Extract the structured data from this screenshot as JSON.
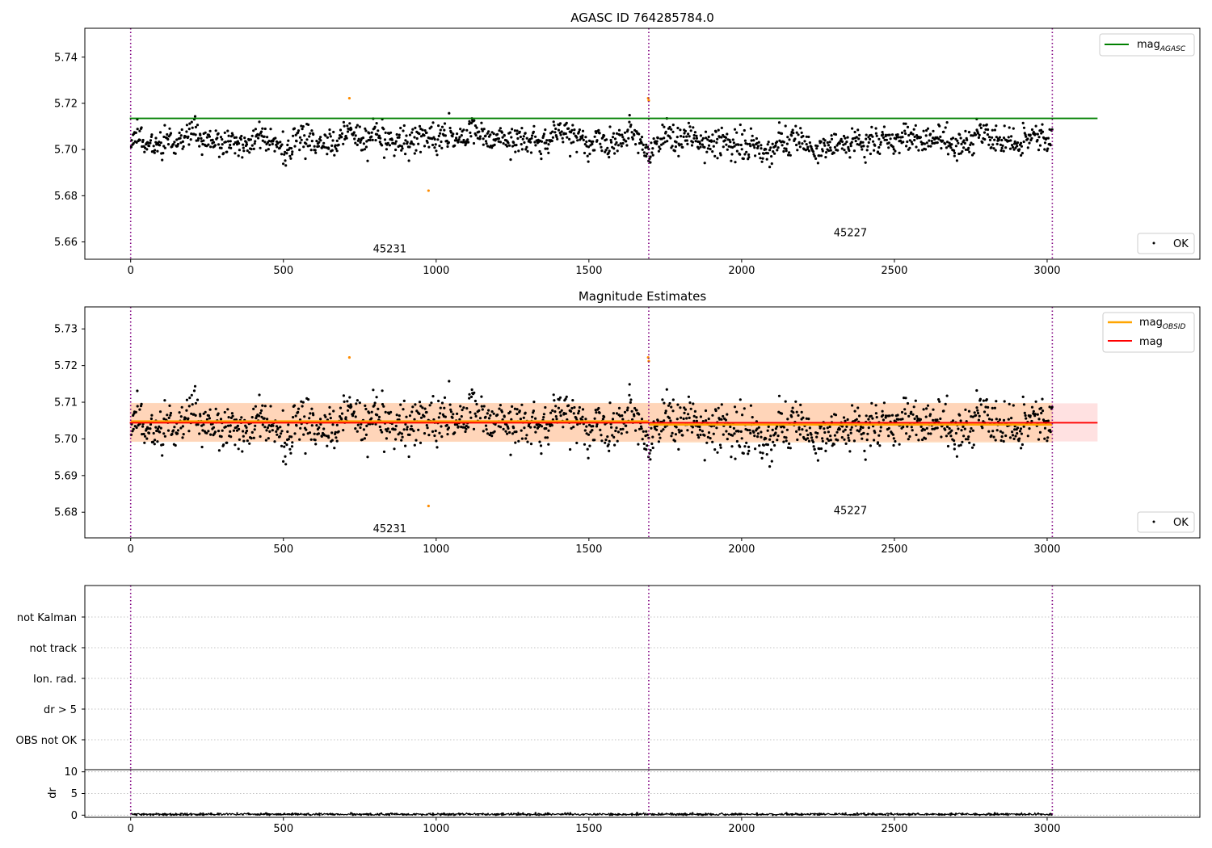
{
  "figure": {
    "background": "#ffffff"
  },
  "colors": {
    "ok_points": "#000000",
    "outlier_points": "#ff8c00",
    "agasc_line": "#008000",
    "obsid_line": "#ffa500",
    "mag_line": "#ff0000",
    "mag_band": "#ffb3b3",
    "obsid_band": "#ffcc99",
    "obs_boundary": "#800080",
    "grid": "#b0b0b0"
  },
  "chart_data": [
    {
      "type": "scatter",
      "title": "AGASC ID 764285784.0",
      "xlim": [
        -150,
        3500
      ],
      "ylim": [
        5.6525,
        5.7525
      ],
      "xticks": [
        0,
        500,
        1000,
        1500,
        2000,
        2500,
        3000
      ],
      "yticks": [
        5.66,
        5.68,
        5.7,
        5.72,
        5.74
      ],
      "ytick_labels": [
        "5.66",
        "5.68",
        "5.70",
        "5.72",
        "5.74"
      ],
      "obs_boundaries": [
        0,
        1696,
        3017
      ],
      "obs_labels": [
        {
          "text": "45231",
          "x": 848,
          "y": 5.6555
        },
        {
          "text": "45227",
          "x": 2356,
          "y": 5.6625
        }
      ],
      "series": [
        {
          "name": "mag_AGASC",
          "kind": "hline",
          "y": 5.7135,
          "x_range": [
            -3,
            3165
          ]
        }
      ],
      "points": {
        "name": "OK",
        "x_range": [
          0,
          3017
        ],
        "mean": 5.7045,
        "spread": 0.009,
        "y_range": [
          5.691,
          5.72
        ]
      },
      "outliers": [
        {
          "x": 716,
          "y": 5.7222
        },
        {
          "x": 975,
          "y": 5.6822
        },
        {
          "x": 1694,
          "y": 5.7222
        },
        {
          "x": 1696,
          "y": 5.7212
        }
      ],
      "legend_top": [
        {
          "label": "mag",
          "sub": "AGASC",
          "color": "#008000"
        }
      ],
      "legend_bottom": [
        {
          "label": "OK"
        }
      ]
    },
    {
      "type": "scatter",
      "title": "Magnitude Estimates",
      "xlim": [
        -150,
        3500
      ],
      "ylim": [
        5.673,
        5.736
      ],
      "xticks": [
        0,
        500,
        1000,
        1500,
        2000,
        2500,
        3000
      ],
      "yticks": [
        5.68,
        5.69,
        5.7,
        5.71,
        5.72,
        5.73
      ],
      "ytick_labels": [
        "5.68",
        "5.69",
        "5.70",
        "5.71",
        "5.72",
        "5.73"
      ],
      "obs_boundaries": [
        0,
        1696,
        3017
      ],
      "obs_labels": [
        {
          "text": "45231",
          "x": 848,
          "y": 5.6745
        },
        {
          "text": "45227",
          "x": 2356,
          "y": 5.6795
        }
      ],
      "series": [
        {
          "name": "mag_OBSID",
          "kind": "segments",
          "segments": [
            {
              "x0": 0,
              "x1": 1696,
              "y": 5.7048,
              "band": [
                5.6992,
                5.7098
              ]
            },
            {
              "x0": 1696,
              "x1": 3017,
              "y": 5.7039,
              "band": [
                5.699,
                5.7098
              ]
            }
          ]
        },
        {
          "name": "mag",
          "kind": "hline",
          "y": 5.7044,
          "x_range": [
            -3,
            3165
          ],
          "band": [
            5.6993,
            5.7097
          ]
        }
      ],
      "points": {
        "name": "OK",
        "x_range": [
          0,
          3017
        ],
        "mean": 5.7045,
        "spread": 0.009,
        "y_range": [
          5.691,
          5.72
        ]
      },
      "outliers": [
        {
          "x": 716,
          "y": 5.7222
        },
        {
          "x": 975,
          "y": 5.6817
        },
        {
          "x": 1694,
          "y": 5.7222
        },
        {
          "x": 1696,
          "y": 5.7212
        }
      ],
      "legend_top": [
        {
          "label": "mag",
          "sub": "OBSID",
          "color": "#ffa500"
        },
        {
          "label": "mag",
          "sub": "",
          "color": "#ff0000"
        }
      ],
      "legend_bottom": [
        {
          "label": "OK"
        }
      ]
    },
    {
      "type": "flags",
      "xlim": [
        -150,
        3500
      ],
      "ytick_labels": [
        "not Kalman",
        "not track",
        "Ion. rad.",
        "dr > 5",
        "OBS not OK"
      ],
      "obs_boundaries": [
        0,
        1696,
        3017
      ],
      "flag_points": []
    },
    {
      "type": "line",
      "ylabel": "dr",
      "xlim": [
        -150,
        3500
      ],
      "ylim": [
        -0.5,
        10.5
      ],
      "xticks": [
        0,
        500,
        1000,
        1500,
        2000,
        2500,
        3000
      ],
      "yticks": [
        0,
        5,
        10
      ],
      "ytick_labels": [
        "0",
        "5",
        "10"
      ],
      "obs_boundaries": [
        0,
        1696,
        3017
      ],
      "dr": {
        "x_range": [
          0,
          3017
        ],
        "typical": 0.2,
        "max": 0.5
      }
    }
  ]
}
